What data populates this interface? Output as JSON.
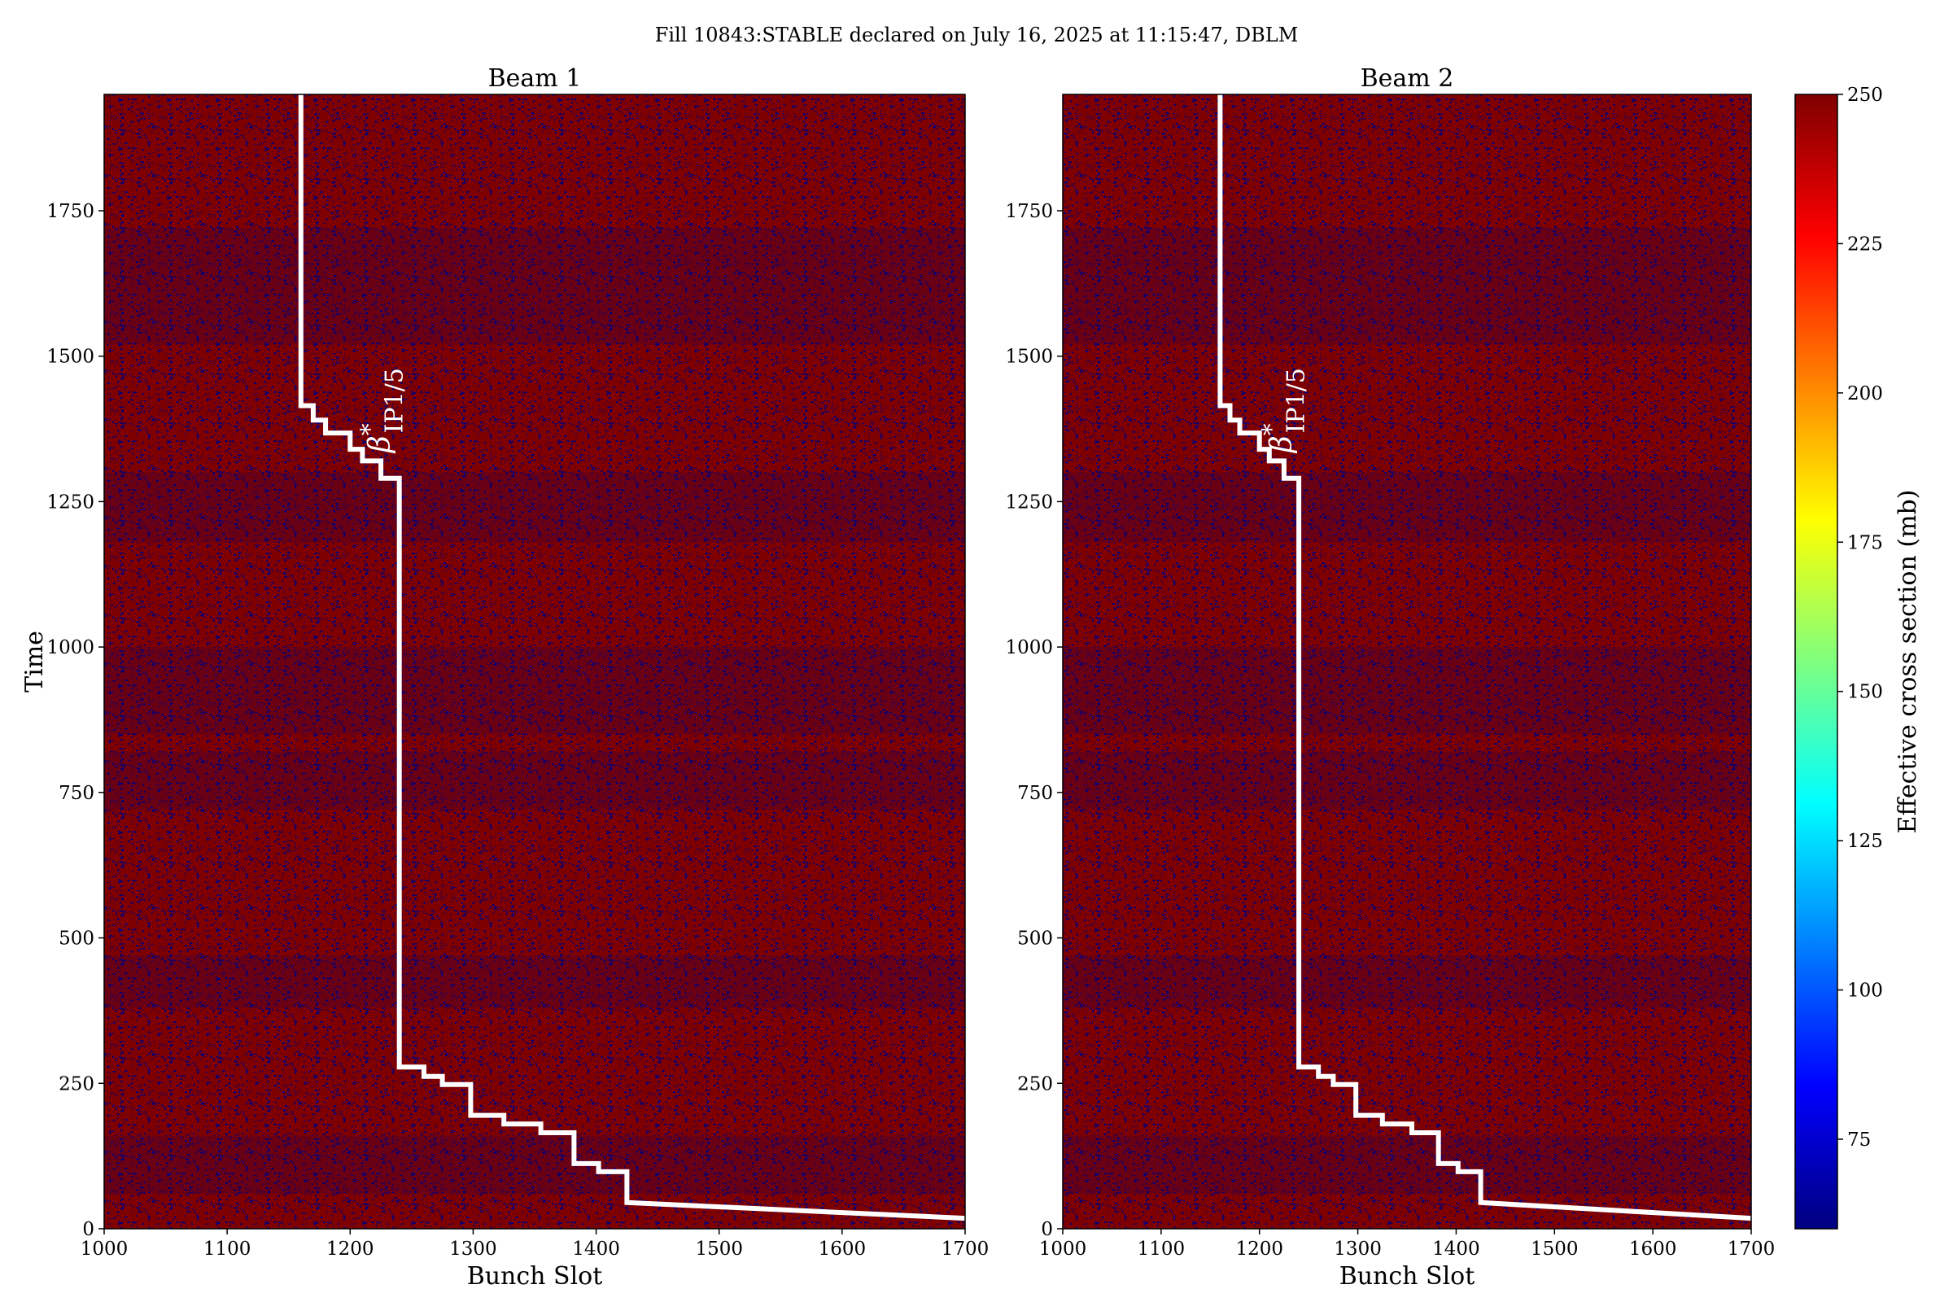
{
  "figure": {
    "suptitle": "Fill 10843:STABLE declared on July 16, 2025 at 11:15:47, DBLM"
  },
  "colorbar": {
    "label": "Effective cross section (mb)",
    "range": [
      60,
      250
    ],
    "ticks": [
      75,
      100,
      125,
      150,
      175,
      200,
      225,
      250
    ],
    "colormap": "jet",
    "colors": [
      "#00007f",
      "#0000ff",
      "#007fff",
      "#00ffff",
      "#7fff7f",
      "#ffff00",
      "#ff7f00",
      "#ff0000",
      "#7f0000"
    ]
  },
  "chart_data": [
    {
      "type": "heatmap",
      "title": "Beam 1",
      "xlabel": "Bunch Slot",
      "ylabel": "Time",
      "xlim": [
        1000,
        1700
      ],
      "ylim": [
        0,
        1950
      ],
      "xticks": [
        1000,
        1100,
        1200,
        1300,
        1400,
        1500,
        1600,
        1700
      ],
      "yticks": [
        0,
        250,
        500,
        750,
        1000,
        1250,
        1500,
        1750
      ],
      "value_pattern": "mostly ~250 mb (dark red) with scattered low values ~60 mb (dark blue); bluer horizontal bands",
      "overlay_line": {
        "color": "#ffffff",
        "points": [
          [
            1160,
            1950
          ],
          [
            1160,
            1415
          ],
          [
            1170,
            1415
          ],
          [
            1170,
            1390
          ],
          [
            1180,
            1390
          ],
          [
            1180,
            1368
          ],
          [
            1200,
            1368
          ],
          [
            1200,
            1340
          ],
          [
            1210,
            1340
          ],
          [
            1210,
            1320
          ],
          [
            1225,
            1320
          ],
          [
            1225,
            1290
          ],
          [
            1240,
            1290
          ],
          [
            1240,
            278
          ],
          [
            1260,
            278
          ],
          [
            1260,
            262
          ],
          [
            1275,
            262
          ],
          [
            1275,
            248
          ],
          [
            1298,
            248
          ],
          [
            1298,
            195
          ],
          [
            1325,
            195
          ],
          [
            1325,
            180
          ],
          [
            1355,
            180
          ],
          [
            1355,
            165
          ],
          [
            1382,
            165
          ],
          [
            1382,
            112
          ],
          [
            1402,
            112
          ],
          [
            1402,
            98
          ],
          [
            1425,
            98
          ],
          [
            1425,
            45
          ],
          [
            1700,
            18
          ]
        ]
      },
      "annotation": {
        "text": "β",
        "superscript": "*",
        "subscript": "IP1/5",
        "x": 1232,
        "y": 1480
      }
    },
    {
      "type": "heatmap",
      "title": "Beam 2",
      "xlabel": "Bunch Slot",
      "ylabel": "",
      "xlim": [
        1000,
        1700
      ],
      "ylim": [
        0,
        1950
      ],
      "xticks": [
        1000,
        1100,
        1200,
        1300,
        1400,
        1500,
        1600,
        1700
      ],
      "yticks": [
        0,
        250,
        500,
        750,
        1000,
        1250,
        1500,
        1750
      ],
      "value_pattern": "mostly ~250 mb (dark red) with scattered low values ~60 mb (dark blue); bluer horizontal bands",
      "overlay_line": {
        "color": "#ffffff",
        "points": [
          [
            1160,
            1950
          ],
          [
            1160,
            1415
          ],
          [
            1170,
            1415
          ],
          [
            1170,
            1390
          ],
          [
            1180,
            1390
          ],
          [
            1180,
            1368
          ],
          [
            1200,
            1368
          ],
          [
            1200,
            1340
          ],
          [
            1210,
            1340
          ],
          [
            1210,
            1320
          ],
          [
            1225,
            1320
          ],
          [
            1225,
            1290
          ],
          [
            1240,
            1290
          ],
          [
            1240,
            278
          ],
          [
            1260,
            278
          ],
          [
            1260,
            262
          ],
          [
            1275,
            262
          ],
          [
            1275,
            248
          ],
          [
            1298,
            248
          ],
          [
            1298,
            195
          ],
          [
            1325,
            195
          ],
          [
            1325,
            180
          ],
          [
            1355,
            180
          ],
          [
            1355,
            165
          ],
          [
            1382,
            165
          ],
          [
            1382,
            112
          ],
          [
            1402,
            112
          ],
          [
            1402,
            98
          ],
          [
            1425,
            98
          ],
          [
            1425,
            45
          ],
          [
            1700,
            18
          ]
        ]
      },
      "annotation": {
        "text": "β",
        "superscript": "*",
        "subscript": "IP1/5",
        "x": 1232,
        "y": 1480
      }
    }
  ]
}
